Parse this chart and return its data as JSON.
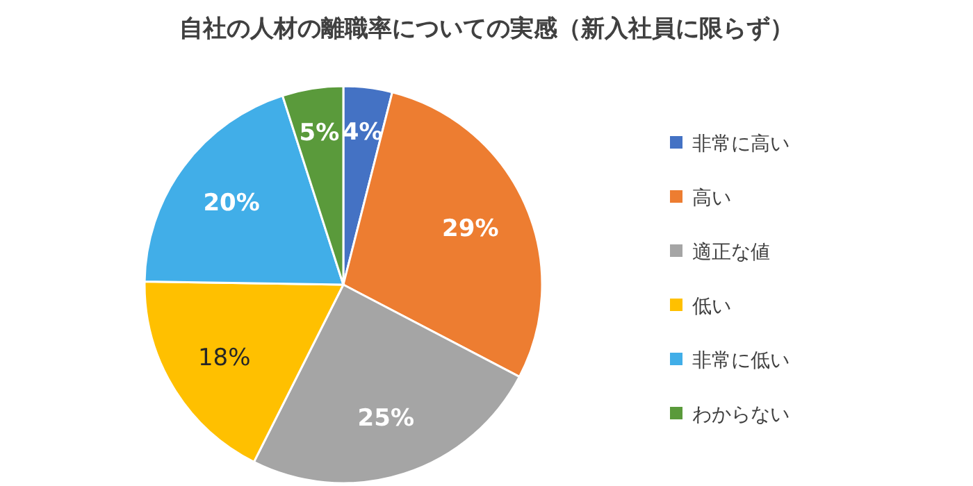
{
  "chart_data": {
    "type": "pie",
    "title": "自社の人材の離職率についての実感（新入社員に限らず）",
    "categories": [
      "非常に高い",
      "高い",
      "適正な値",
      "低い",
      "非常に低い",
      "わからない"
    ],
    "values": [
      4,
      29,
      25,
      18,
      20,
      5
    ],
    "colors": [
      "#4472c4",
      "#ed7d31",
      "#a5a5a5",
      "#ffc000",
      "#41aee8",
      "#5a9a3b"
    ],
    "value_labels": [
      "4%",
      "29%",
      "25%",
      "18%",
      "20%",
      "5%"
    ],
    "legend": "right"
  }
}
